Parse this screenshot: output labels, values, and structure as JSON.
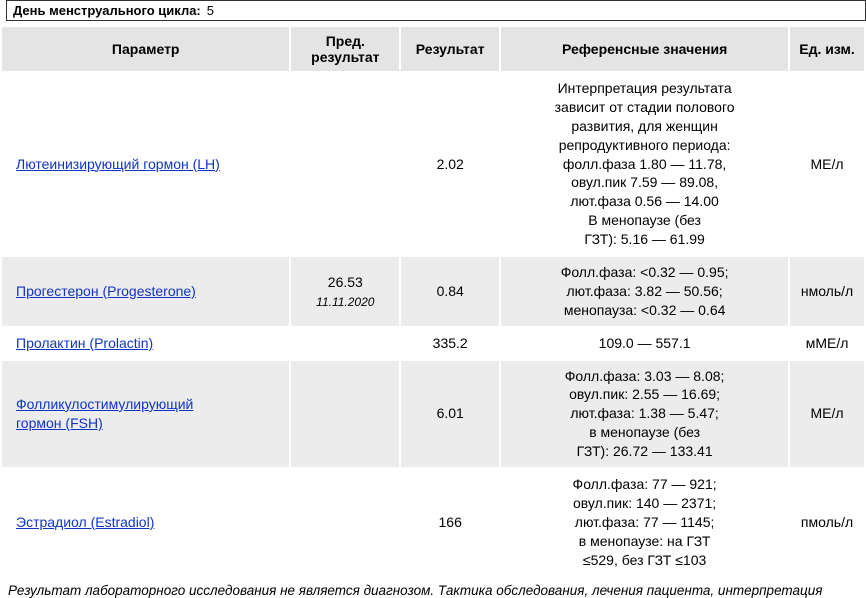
{
  "cycle": {
    "label": "День менструального цикла:",
    "value": "5"
  },
  "headers": {
    "param": "Параметр",
    "prev": "Пред. результат",
    "result": "Результат",
    "ref": "Референсные значения",
    "unit": "Ед. изм."
  },
  "rows": [
    {
      "zebra": false,
      "param": "Лютеинизирующий гормон (LH)",
      "prev_value": "",
      "prev_date": "",
      "result": "2.02",
      "ref": "Интерпретация результата\nзависит от стадии полового\nразвития, для женщин\nрепродуктивного периода:\nфолл.фаза 1.80 — 11.78,\nовул.пик 7.59 — 89.08,\nлют.фаза 0.56 — 14.00\nВ менопаузе (без\nГЗТ): 5.16 — 61.99",
      "unit": "МЕ/л"
    },
    {
      "zebra": true,
      "param": "Прогестерон (Progesterone)",
      "prev_value": "26.53",
      "prev_date": "11.11.2020",
      "result": "0.84",
      "ref": "Фолл.фаза: <0.32 — 0.95;\nлют.фаза: 3.82 — 50.56;\nменопауза: <0.32 — 0.64",
      "unit": "нмоль/л"
    },
    {
      "zebra": false,
      "param": "Пролактин (Prolactin)",
      "prev_value": "",
      "prev_date": "",
      "result": "335.2",
      "ref": "109.0 — 557.1",
      "unit": "мМЕ/л"
    },
    {
      "zebra": true,
      "param": "Фолликулостимулирующий\n гормон (FSH)",
      "prev_value": "",
      "prev_date": "",
      "result": "6.01",
      "ref": "Фолл.фаза: 3.03 — 8.08;\nовул.пик: 2.55 — 16.69;\nлют.фаза: 1.38 — 5.47;\nв менопаузе (без\nГЗТ): 26.72 — 133.41",
      "unit": "МЕ/л"
    },
    {
      "zebra": false,
      "param": "Эстрадиол (Estradiol)",
      "prev_value": "",
      "prev_date": "",
      "result": "166",
      "ref": "Фолл.фаза: 77 — 921;\nовул.пик: 140 — 2371;\nлют.фаза: 77 — 1145;\nв менопаузе: на ГЗТ\n≤529, без ГЗТ ≤103",
      "unit": "пмоль/л"
    }
  ],
  "footnote": "Результат лабораторного исследования не является диагнозом. Тактика обследования, лечения пациента, интерпретация"
}
